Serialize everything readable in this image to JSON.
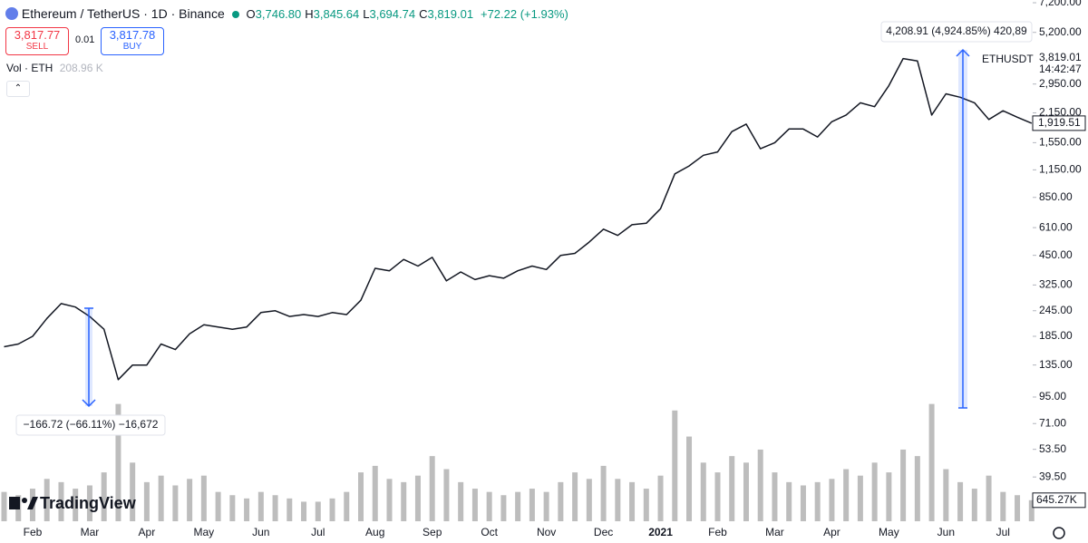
{
  "header": {
    "symbol": "Ethereum / TetherUS · 1D · Binance",
    "ohlc": [
      {
        "label": "O",
        "value": "3,746.80"
      },
      {
        "label": "H",
        "value": "3,845.64"
      },
      {
        "label": "L",
        "value": "3,694.74"
      },
      {
        "label": "C",
        "value": "3,819.01"
      }
    ],
    "change": "+72.22 (+1.93%)",
    "sell_price": "3,817.77",
    "sell": "SELL",
    "spread": "0.01",
    "buy_price": "3,817.78",
    "buy": "BUY",
    "volume_title": "Vol · ETH",
    "volume_value": "208.96 K"
  },
  "branding": "TradingView",
  "chart_data": {
    "type": "line",
    "log_scale": true,
    "color": "#131722",
    "categories": [
      null,
      null,
      "Feb",
      null,
      null,
      null,
      "Mar",
      null,
      null,
      null,
      "Apr",
      null,
      null,
      null,
      "May",
      null,
      null,
      null,
      "Jun",
      null,
      null,
      null,
      "Jul",
      null,
      null,
      null,
      "Aug",
      null,
      null,
      null,
      "Sep",
      null,
      null,
      null,
      "Oct",
      null,
      null,
      null,
      "Nov",
      null,
      null,
      null,
      "Dec",
      null,
      null,
      null,
      "2021",
      null,
      null,
      null,
      "Feb",
      null,
      null,
      null,
      "Mar",
      null,
      null,
      null,
      "Apr",
      null,
      null,
      null,
      "May",
      null,
      null,
      null,
      "Jun",
      null,
      null,
      null,
      "Jul",
      null,
      null
    ],
    "series": [
      {
        "name": "ETHUSDT",
        "color": "#131722",
        "values": [
          165,
          170,
          185,
          225,
          265,
          255,
          230,
          200,
          115,
          135,
          135,
          170,
          160,
          190,
          210,
          205,
          200,
          205,
          240,
          245,
          230,
          235,
          230,
          240,
          235,
          275,
          390,
          380,
          430,
          400,
          440,
          340,
          375,
          345,
          360,
          350,
          380,
          400,
          385,
          450,
          460,
          520,
          600,
          560,
          630,
          640,
          750,
          1100,
          1200,
          1350,
          1400,
          1750,
          1900,
          1450,
          1550,
          1800,
          1800,
          1650,
          1950,
          2100,
          2400,
          2300,
          2900,
          3900,
          3800,
          2100,
          2650,
          2550,
          2400,
          2000,
          2200,
          2050,
          1919.51
        ],
        "value_label": "1,919.51"
      }
    ],
    "volume": {
      "color": "#bdbdbd",
      "values": [
        900,
        800,
        1000,
        1300,
        1200,
        1000,
        1100,
        1500,
        3600,
        1800,
        1200,
        1400,
        1100,
        1300,
        1400,
        900,
        800,
        700,
        900,
        800,
        700,
        600,
        600,
        700,
        900,
        1500,
        1700,
        1300,
        1200,
        1400,
        2000,
        1600,
        1200,
        1000,
        900,
        800,
        900,
        1000,
        900,
        1200,
        1500,
        1300,
        1700,
        1300,
        1200,
        1000,
        1400,
        3400,
        2600,
        1800,
        1500,
        2000,
        1800,
        2200,
        1500,
        1200,
        1100,
        1200,
        1300,
        1600,
        1400,
        1800,
        1500,
        2200,
        2000,
        3600,
        1600,
        1200,
        1000,
        1400,
        900,
        800,
        645.27
      ],
      "value_label": "645.27K",
      "ylim": [
        0,
        16000
      ]
    },
    "ylim": [
      24.3,
      7420
    ],
    "yticks": [
      {
        "value": 7200,
        "label": "7,200.00"
      },
      {
        "value": 5200,
        "label": "5,200.00"
      },
      {
        "value": 2950,
        "label": "2,950.00"
      },
      {
        "value": 2150,
        "label": "2,150.00"
      },
      {
        "value": 1550,
        "label": "1,550.00"
      },
      {
        "value": 1150,
        "label": "1,150.00"
      },
      {
        "value": 850,
        "label": "850.00"
      },
      {
        "value": 610,
        "label": "610.00"
      },
      {
        "value": 450,
        "label": "450.00"
      },
      {
        "value": 325,
        "label": "325.00"
      },
      {
        "value": 245,
        "label": "245.00"
      },
      {
        "value": 185,
        "label": "185.00"
      },
      {
        "value": 135,
        "label": "135.00"
      },
      {
        "value": 95,
        "label": "95.00"
      },
      {
        "value": 71,
        "label": "71.00"
      },
      {
        "value": 53.5,
        "label": "53.50"
      },
      {
        "value": 39.5,
        "label": "39.50"
      }
    ],
    "symbol_label": "ETHUSDT",
    "compare_price": "3,819.01",
    "countdown": "14:42:47",
    "annotations": [
      "−166.72 (−66.11%) −16,672",
      "4,208.91 (4,924.85%) 420,89"
    ]
  }
}
